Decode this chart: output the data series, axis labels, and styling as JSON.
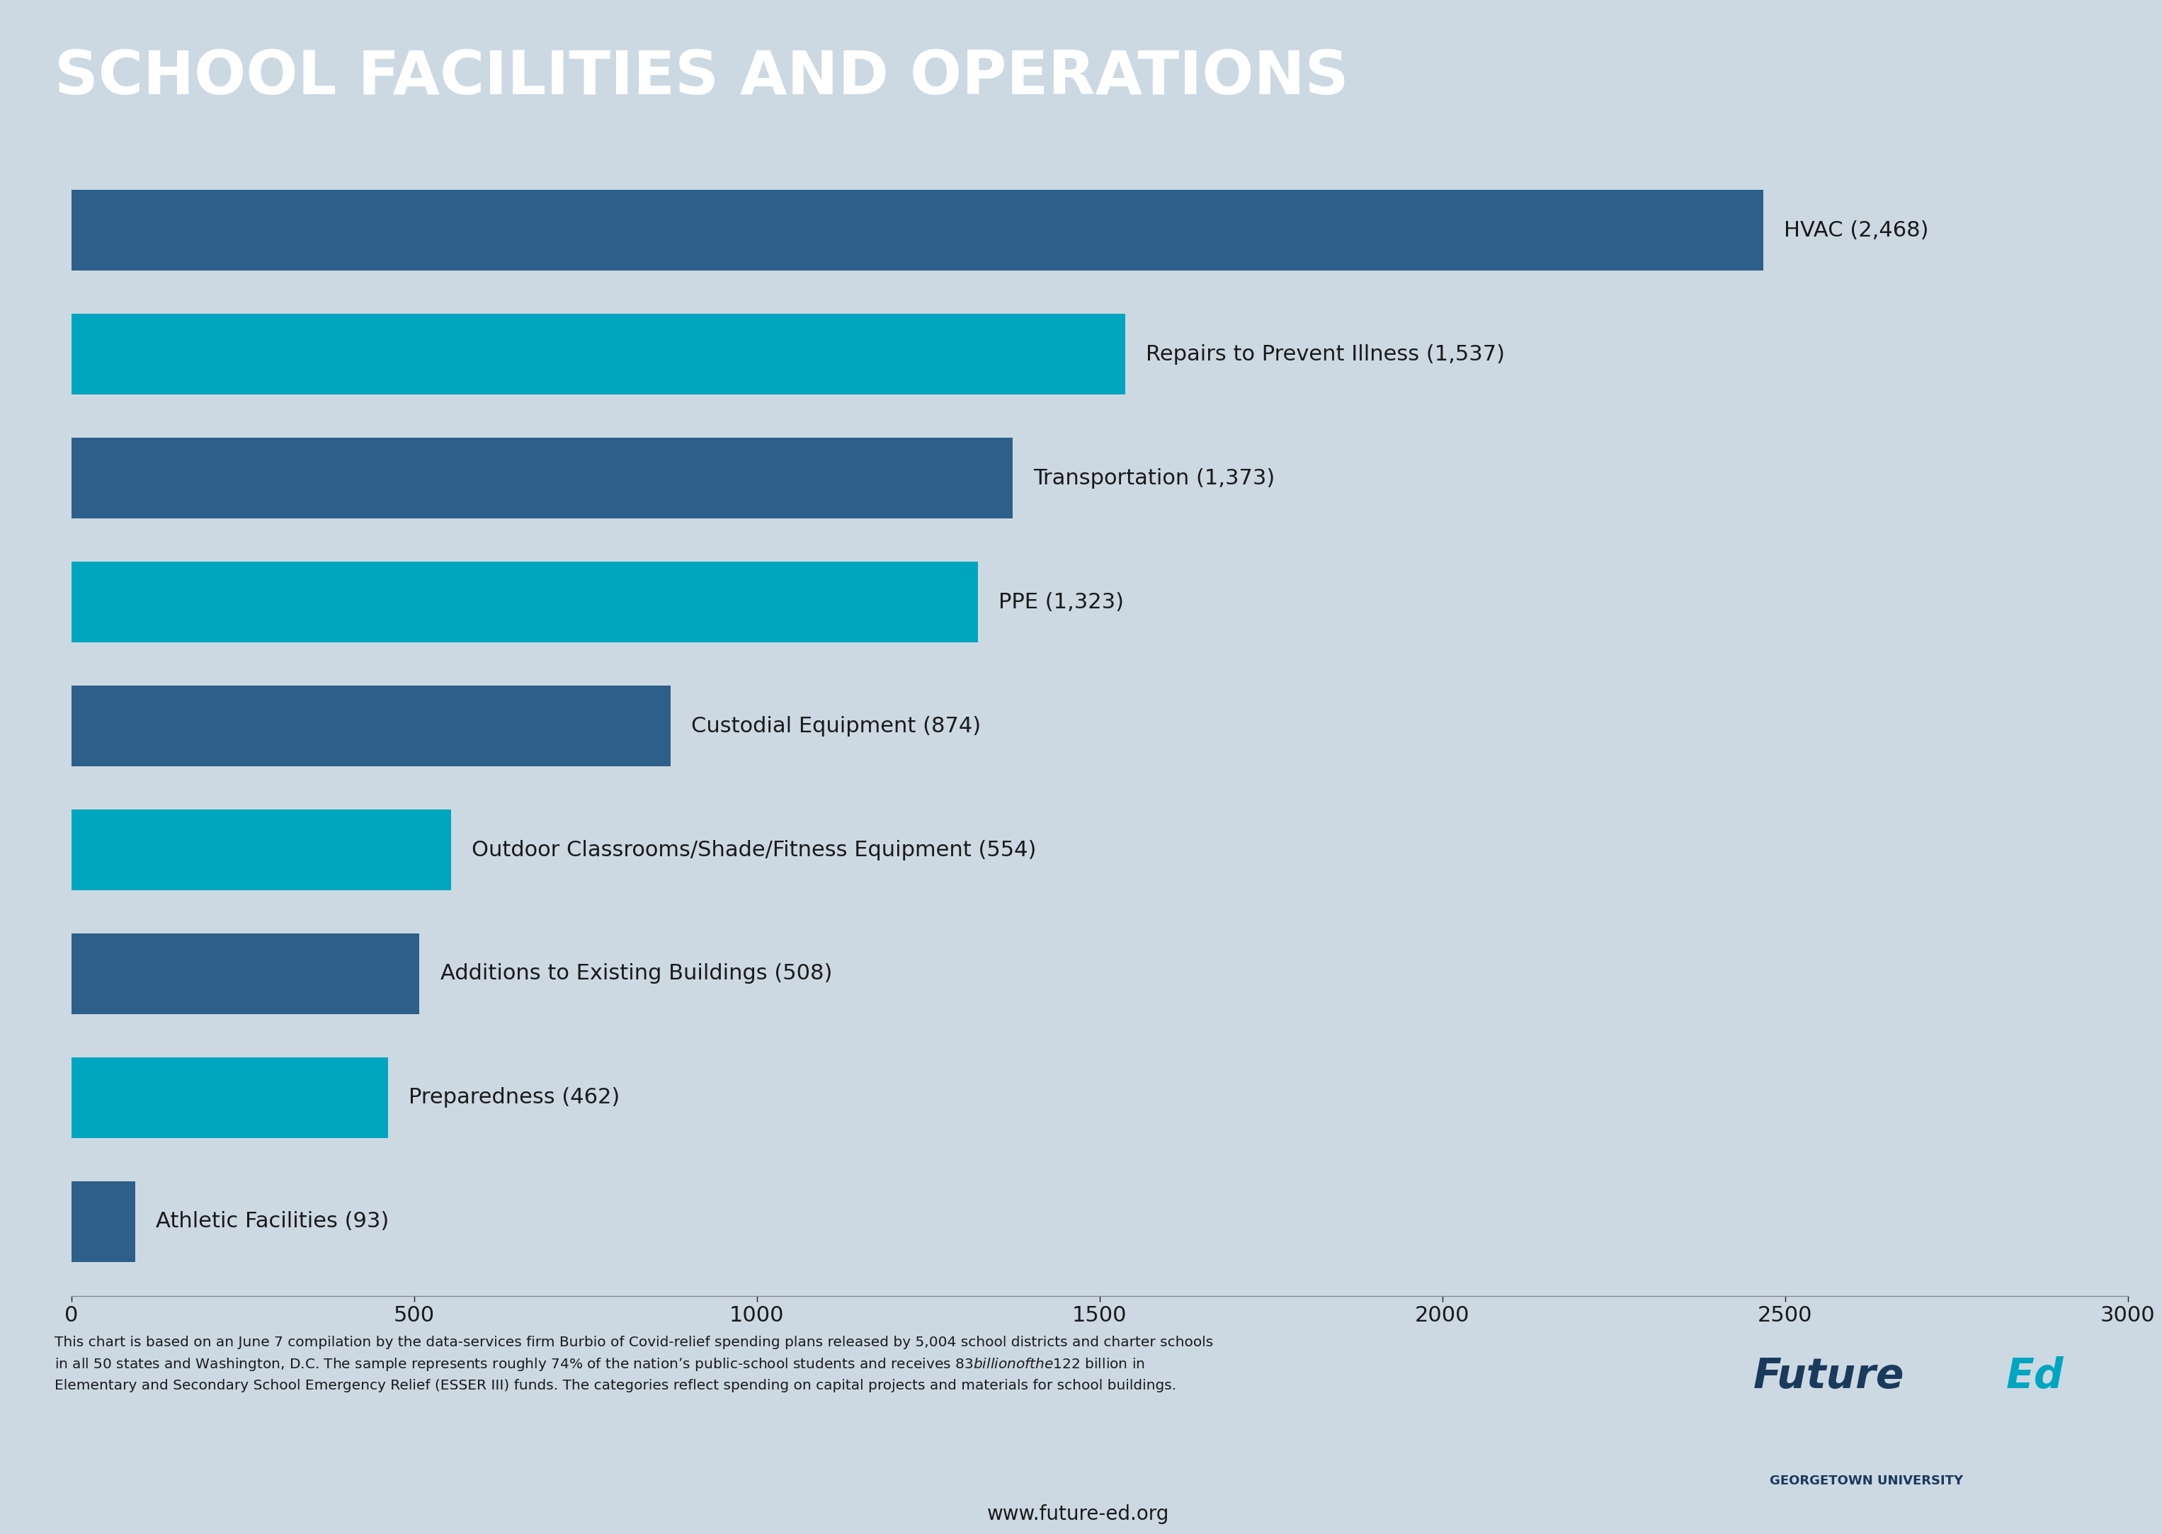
{
  "title": "SCHOOL FACILITIES AND OPERATIONS",
  "title_bg_color": "#0d2b4e",
  "title_text_color": "#ffffff",
  "chart_bg_color": "#ccd9e3",
  "categories": [
    "HVAC",
    "Repairs to Prevent Illness",
    "Transportation",
    "PPE",
    "Custodial Equipment",
    "Outdoor Classrooms/Shade/Fitness Equipment",
    "Additions to Existing Buildings",
    "Preparedness",
    "Athletic Facilities"
  ],
  "values": [
    2468,
    1537,
    1373,
    1323,
    874,
    554,
    508,
    462,
    93
  ],
  "bar_colors": [
    "#2e5f8a",
    "#00a6c0",
    "#2e5f8a",
    "#00a6c0",
    "#2e5f8a",
    "#00a6c0",
    "#2e5f8a",
    "#00a6c0",
    "#2e5f8a"
  ],
  "labels": [
    "HVAC (2,468)",
    "Repairs to Prevent Illness (1,537)",
    "Transportation (1,373)",
    "PPE (1,323)",
    "Custodial Equipment (874)",
    "Outdoor Classrooms/Shade/Fitness Equipment (554)",
    "Additions to Existing Buildings (508)",
    "Preparedness (462)",
    "Athletic Facilities (93)"
  ],
  "xlim": [
    0,
    3000
  ],
  "xticks": [
    0,
    500,
    1000,
    1500,
    2000,
    2500,
    3000
  ],
  "footnote": "This chart is based on an June 7 compilation by the data-services firm Burbio of Covid-relief spending plans released by 5,004 school districts and charter schools\nin all 50 states and Washington, D.C. The sample represents roughly 74% of the nation’s public-school students and receives $83 billion of the $122 billion in\nElementary and Secondary School Emergency Relief (ESSER III) funds. The categories reflect spending on capital projects and materials for school buildings.",
  "website": "www.future-ed.org",
  "logo_text_future": "Future",
  "logo_text_ed": "Ed",
  "logo_subtext": "GEORGETOWN UNIVERSITY",
  "logo_future_color": "#1a3a5c",
  "logo_ed_color": "#00a6c0",
  "axis_label_color": "#1a1a1a",
  "tick_color": "#1a1a1a",
  "bar_label_color": "#1a1a1a",
  "footnote_color": "#1a1a1a",
  "website_color": "#1a1a1a"
}
